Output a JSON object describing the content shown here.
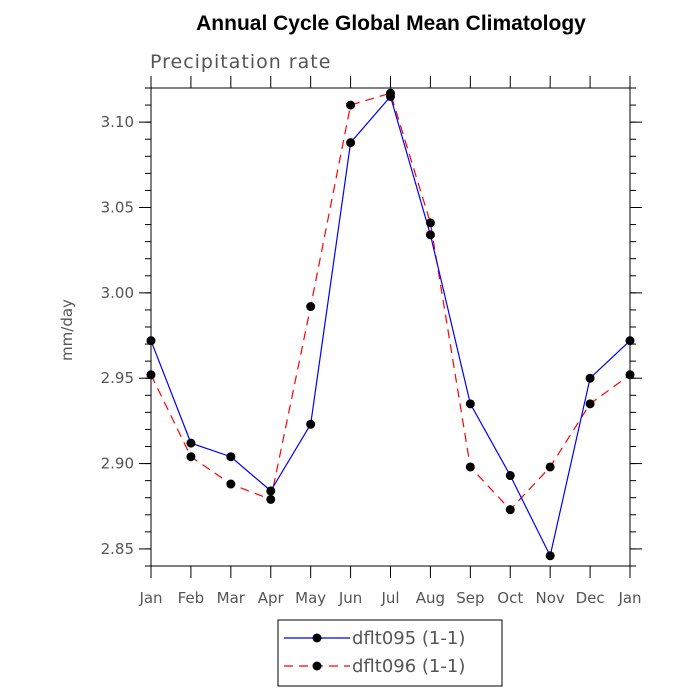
{
  "chart_data": {
    "type": "line",
    "title": "Annual Cycle Global Mean Climatology",
    "subtitle": "Precipitation rate",
    "xlabel": "",
    "ylabel": "mm/day",
    "categories": [
      "Jan",
      "Feb",
      "Mar",
      "Apr",
      "May",
      "Jun",
      "Jul",
      "Aug",
      "Sep",
      "Oct",
      "Nov",
      "Dec",
      "Jan"
    ],
    "ylim": [
      2.84,
      3.12
    ],
    "yticks": [
      "2.85",
      "2.90",
      "2.95",
      "3.00",
      "3.05",
      "3.10"
    ],
    "grid": false,
    "legend_position": "bottom",
    "series": [
      {
        "name": "dflt095 (1-1)",
        "color": "#0000ff",
        "dash": "solid",
        "marker": "filled-circle",
        "values": [
          2.972,
          2.912,
          2.904,
          2.884,
          2.923,
          3.088,
          3.115,
          3.034,
          2.935,
          2.893,
          2.846,
          2.95,
          2.972
        ]
      },
      {
        "name": "dflt096 (1-1)",
        "color": "#ff0000",
        "dash": "dashed",
        "marker": "filled-circle",
        "values": [
          2.952,
          2.904,
          2.888,
          2.879,
          2.992,
          3.11,
          3.117,
          3.041,
          2.898,
          2.873,
          2.898,
          2.935,
          2.952
        ]
      }
    ]
  }
}
